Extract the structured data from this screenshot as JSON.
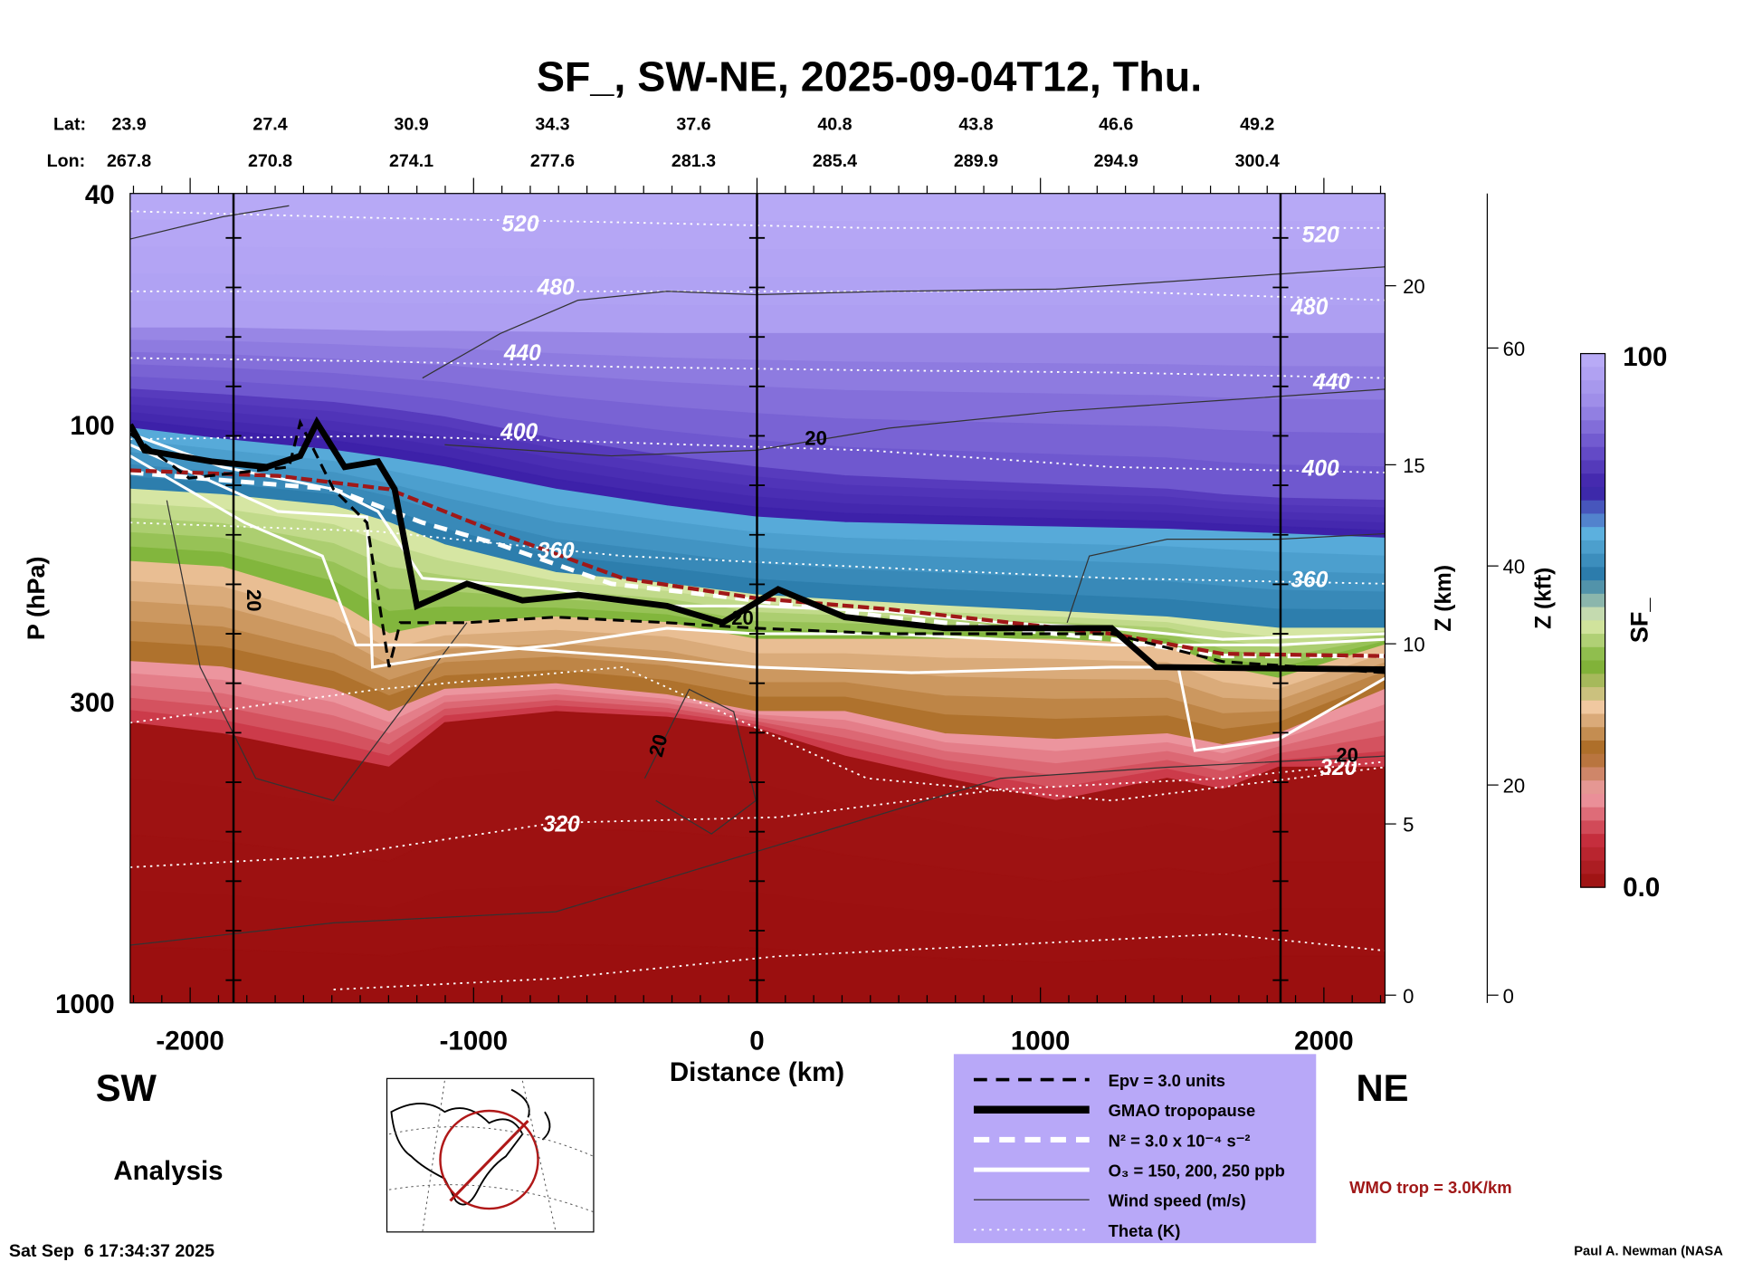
{
  "chart_data": {
    "type": "heatmap",
    "title": "SF_, SW-NE, 2025-09-04T12, Thu.",
    "xlabel": "Distance (km)",
    "ylabel": "P (hPa)",
    "y2label": "Z (km)",
    "y3label": "Z (kft)",
    "colorbar_label": "SF_",
    "xlim": [
      -2200,
      2230
    ],
    "ylim": [
      1000,
      40
    ],
    "x_ticks": [
      "-2000",
      "-1000",
      "0",
      "1000",
      "2000"
    ],
    "x_tick_values": [
      -2000,
      -1000,
      0,
      1000,
      2000
    ],
    "y_ticks": [
      "40",
      "100",
      "300",
      "1000"
    ],
    "z_km_ticks": [
      "20",
      "15",
      "10",
      "5",
      "0"
    ],
    "z_kft_ticks": [
      "60",
      "40",
      "20",
      "0"
    ],
    "colorbar_ticks": [
      "100",
      "0.0"
    ],
    "colorbar_range": [
      0,
      100
    ],
    "lat_label": "Lat:",
    "lon_label": "Lon:",
    "lat": [
      "23.9",
      "27.4",
      "30.9",
      "34.3",
      "37.6",
      "40.8",
      "43.8",
      "46.6",
      "49.2"
    ],
    "lon": [
      "267.8",
      "270.8",
      "274.1",
      "277.6",
      "281.3",
      "285.4",
      "289.9",
      "294.9",
      "300.4"
    ],
    "theta_labels": [
      "520",
      "480",
      "440",
      "400",
      "360",
      "320",
      "520",
      "480",
      "440",
      "400",
      "360",
      "320"
    ],
    "wind_labels": [
      "20",
      "20",
      "20",
      "20",
      "20"
    ],
    "legend": [
      {
        "label": "Epv = 3.0 units",
        "style": "dashed-black"
      },
      {
        "label": "GMAO tropopause",
        "style": "thick-black"
      },
      {
        "label": "N² = 3.0 x 10⁻⁴ s⁻²",
        "style": "dashed-white"
      },
      {
        "label": "O₃ = 150, 200, 250 ppb",
        "style": "solid-white"
      },
      {
        "label": "Wind speed (m/s)",
        "style": "thin-black"
      },
      {
        "label": "Theta (K)",
        "style": "dotted-white"
      }
    ]
  },
  "labels": {
    "sw": "SW",
    "ne": "NE",
    "analysis": "Analysis",
    "timestamp": "Sat Sep  6 17:34:37 2025",
    "wmo": "WMO trop = 3.0K/km",
    "author": "Paul A. Newman (NASA"
  },
  "colors": {
    "legend_bg": "#b8a8f8",
    "wmo": "#a01818",
    "high": "#b4a4f2",
    "low": "#9a0e0e"
  }
}
